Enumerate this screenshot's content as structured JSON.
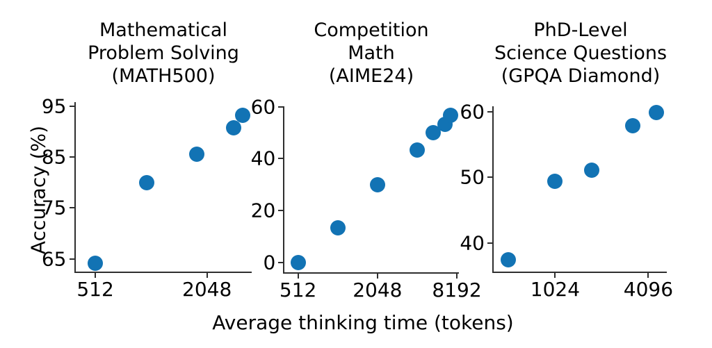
{
  "figure": {
    "xlabel": "Average thinking time (tokens)",
    "ylabel": "Accuracy (%)",
    "background_color": "#ffffff",
    "text_color": "#000000",
    "marker_color": "#1273b4",
    "spine_color": "#2e2e2e"
  },
  "chart_data": [
    {
      "type": "scatter",
      "title_lines": [
        "Mathematical",
        "Problem Solving",
        "(MATH500)"
      ],
      "title": "Mathematical Problem Solving (MATH500)",
      "xscale": "log2",
      "yscale": "linear",
      "xlim": [
        400,
        3570
      ],
      "ylim": [
        62.5,
        95.8
      ],
      "x_ticks": [
        512,
        2048
      ],
      "y_ticks": [
        65,
        75,
        85,
        95
      ],
      "points": [
        {
          "x": 512,
          "y": 64.2
        },
        {
          "x": 970,
          "y": 80.0
        },
        {
          "x": 1800,
          "y": 85.5
        },
        {
          "x": 2850,
          "y": 90.8
        },
        {
          "x": 3200,
          "y": 93.2
        }
      ]
    },
    {
      "type": "scatter",
      "title_lines": [
        "Competition",
        "Math",
        "(AIME24)"
      ],
      "title": "Competition Math (AIME24)",
      "xscale": "log2",
      "yscale": "linear",
      "xlim": [
        405,
        8490
      ],
      "ylim": [
        -3.7,
        60.2
      ],
      "x_ticks": [
        512,
        2048,
        8192
      ],
      "y_ticks": [
        0,
        20,
        40,
        60
      ],
      "points": [
        {
          "x": 512,
          "y": 0.0
        },
        {
          "x": 1024,
          "y": 13.3
        },
        {
          "x": 2048,
          "y": 30.0
        },
        {
          "x": 4096,
          "y": 43.3
        },
        {
          "x": 5400,
          "y": 50.0
        },
        {
          "x": 6650,
          "y": 53.3
        },
        {
          "x": 7300,
          "y": 56.7
        }
      ]
    },
    {
      "type": "scatter",
      "title_lines": [
        "PhD-Level",
        "Science Questions",
        "(GPQA Diamond)"
      ],
      "title": "PhD-Level Science Questions (GPQA Diamond)",
      "xscale": "log2",
      "yscale": "linear",
      "xlim": [
        410,
        5410
      ],
      "ylim": [
        35.7,
        60.8
      ],
      "x_ticks": [
        1024,
        4096
      ],
      "y_ticks": [
        40,
        50,
        60
      ],
      "points": [
        {
          "x": 512,
          "y": 37.5
        },
        {
          "x": 1024,
          "y": 49.4
        },
        {
          "x": 1760,
          "y": 51.1
        },
        {
          "x": 3250,
          "y": 57.8
        },
        {
          "x": 4600,
          "y": 59.8
        }
      ]
    }
  ]
}
